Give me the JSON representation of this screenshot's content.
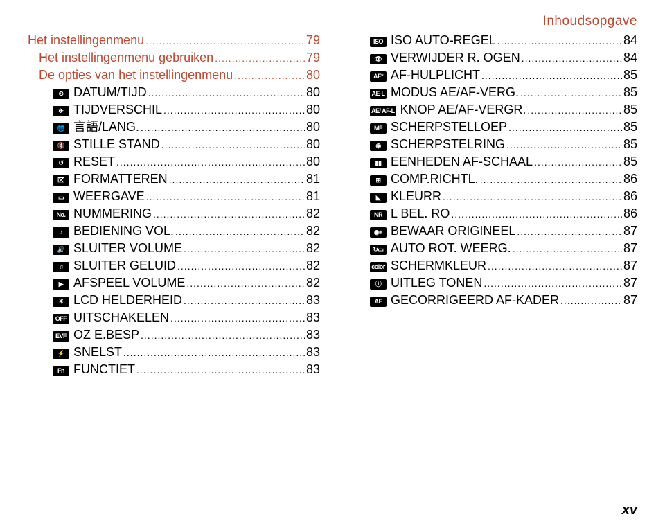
{
  "header": {
    "title": "Inhoudsopgave",
    "color": "#c0472f"
  },
  "footer": {
    "roman": "xv"
  },
  "style": {
    "red": "#c0472f",
    "black": "#000000",
    "font_size_row": 18,
    "line_height": 24
  },
  "columns": [
    {
      "rows": [
        {
          "label": "Het instellingenmenu",
          "page": "79",
          "indent": 0,
          "color": "#c0472f",
          "icon": null
        },
        {
          "label": "Het instellingenmenu gebruiken",
          "page": "79",
          "indent": 1,
          "color": "#c0472f",
          "icon": null
        },
        {
          "label": "De opties van het instellingenmenu",
          "page": "80",
          "indent": 1,
          "color": "#c0472f",
          "icon": null
        },
        {
          "label": "DATUM/TIJD",
          "page": "80",
          "indent": 2,
          "color": "#000000",
          "icon": "⏲"
        },
        {
          "label": "TIJDVERSCHIL",
          "page": "80",
          "indent": 2,
          "color": "#000000",
          "icon": "✈"
        },
        {
          "label": "言語/LANG.",
          "page": "80",
          "indent": 2,
          "color": "#000000",
          "icon": "🌐"
        },
        {
          "label": "STILLE STAND",
          "page": "80",
          "indent": 2,
          "color": "#000000",
          "icon": "🔇"
        },
        {
          "label": "RESET",
          "page": "80",
          "indent": 2,
          "color": "#000000",
          "icon": "↺"
        },
        {
          "label": "FORMATTEREN",
          "page": "81",
          "indent": 2,
          "color": "#000000",
          "icon": "⌧"
        },
        {
          "label": "WEERGAVE",
          "page": "81",
          "indent": 2,
          "color": "#000000",
          "icon": "▭"
        },
        {
          "label": "NUMMERING",
          "page": "82",
          "indent": 2,
          "color": "#000000",
          "icon": "No."
        },
        {
          "label": "BEDIENING VOL.",
          "page": "82",
          "indent": 2,
          "color": "#000000",
          "icon": "♪"
        },
        {
          "label": "SLUITER VOLUME",
          "page": "82",
          "indent": 2,
          "color": "#000000",
          "icon": "🔊"
        },
        {
          "label": "SLUITER GELUID",
          "page": "82",
          "indent": 2,
          "color": "#000000",
          "icon": "♫"
        },
        {
          "label": "AFSPEEL VOLUME",
          "page": "82",
          "indent": 2,
          "color": "#000000",
          "icon": "▶"
        },
        {
          "label": "LCD HELDERHEID",
          "page": "83",
          "indent": 2,
          "color": "#000000",
          "icon": "☀"
        },
        {
          "label": "UITSCHAKELEN",
          "page": "83",
          "indent": 2,
          "color": "#000000",
          "icon": "OFF"
        },
        {
          "label": "OZ E.BESP",
          "page": "83",
          "indent": 2,
          "color": "#000000",
          "icon": "EVF"
        },
        {
          "label": "SNELST",
          "page": "83",
          "indent": 2,
          "color": "#000000",
          "icon": "⚡"
        },
        {
          "label": "FUNCTIET",
          "page": "83",
          "indent": 2,
          "color": "#000000",
          "icon": "Fn"
        }
      ]
    },
    {
      "rows": [
        {
          "label": "ISO AUTO-REGEL",
          "page": "84",
          "indent": 2,
          "color": "#000000",
          "icon": "ISO"
        },
        {
          "label": "VERWIJDER R. OGEN",
          "page": "84",
          "indent": 2,
          "color": "#000000",
          "icon": "👁"
        },
        {
          "label": "AF-HULPLICHT",
          "page": "85",
          "indent": 2,
          "color": "#000000",
          "icon": "AF*"
        },
        {
          "label": "MODUS AE/AF-VERG.",
          "page": "85",
          "indent": 2,
          "color": "#000000",
          "icon": "AE-L"
        },
        {
          "label": "KNOP AE/AF-VERGR.",
          "page": "85",
          "indent": 2,
          "color": "#000000",
          "icon": "AE/\nAF-L"
        },
        {
          "label": "SCHERPSTELLOEP",
          "page": "85",
          "indent": 2,
          "color": "#000000",
          "icon": "MF"
        },
        {
          "label": "SCHERPSTELRING",
          "page": "85",
          "indent": 2,
          "color": "#000000",
          "icon": "◉"
        },
        {
          "label": "EENHEDEN AF-SCHAAL",
          "page": "85",
          "indent": 2,
          "color": "#000000",
          "icon": "▮▮"
        },
        {
          "label": "COMP.RICHTL.",
          "page": "86",
          "indent": 2,
          "color": "#000000",
          "icon": "⊞"
        },
        {
          "label": "KLEURR",
          "page": "86",
          "indent": 2,
          "color": "#000000",
          "icon": "◣"
        },
        {
          "label": "L BEL. RO",
          "page": "86",
          "indent": 2,
          "color": "#000000",
          "icon": "NR"
        },
        {
          "label": "BEWAAR ORIGINEEL",
          "page": "87",
          "indent": 2,
          "color": "#000000",
          "icon": "◉+"
        },
        {
          "label": "AUTO ROT. WEERG.",
          "page": "87",
          "indent": 2,
          "color": "#000000",
          "icon": "↻▭"
        },
        {
          "label": "SCHERMKLEUR",
          "page": "87",
          "indent": 2,
          "color": "#000000",
          "icon": "color"
        },
        {
          "label": "UITLEG TONEN",
          "page": "87",
          "indent": 2,
          "color": "#000000",
          "icon": "ⓘ"
        },
        {
          "label": "GECORRIGEERD AF-KADER",
          "page": "87",
          "indent": 2,
          "color": "#000000",
          "icon": "AF"
        }
      ]
    }
  ]
}
